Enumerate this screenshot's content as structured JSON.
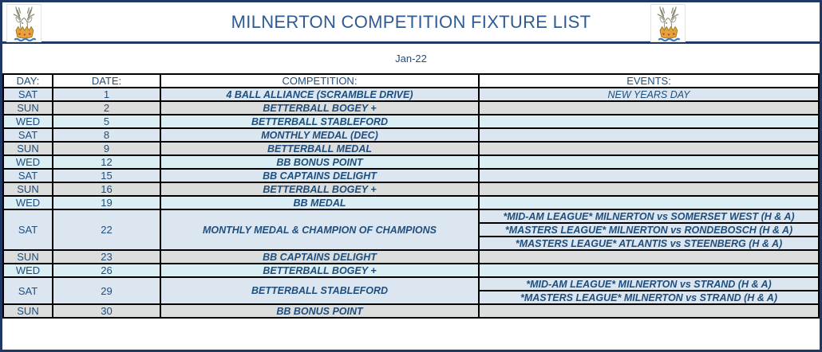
{
  "header": {
    "title": "MILNERTON COMPETITION FIXTURE LIST",
    "month": "Jan-22",
    "logo": "milnerton-golf-club-deer-crest"
  },
  "colors": {
    "frame_navy": "#1F3864",
    "title_blue": "#2E5B93",
    "cell_text_blue": "#1F4E7C",
    "row_sat_blue": "#DCE6F1",
    "row_sun_gray": "#DCDEDE",
    "row_wed_cyan": "#DAEEF3",
    "grid_black": "#000000"
  },
  "table": {
    "columns": [
      "DAY:",
      "DATE:",
      "COMPETITION:",
      "EVENTS:"
    ],
    "rows": [
      {
        "day": "SAT",
        "date": "1",
        "competition": "4 BALL ALLIANCE (SCRAMBLE DRIVE)",
        "shade": "sat",
        "events_bold": false,
        "events": [
          "NEW YEARS DAY"
        ]
      },
      {
        "day": "SUN",
        "date": "2",
        "competition": "BETTERBALL BOGEY +",
        "shade": "sun",
        "events_bold": true,
        "events": [
          ""
        ]
      },
      {
        "day": "WED",
        "date": "5",
        "competition": "BETTERBALL STABLEFORD",
        "shade": "wed",
        "events_bold": true,
        "events": [
          ""
        ]
      },
      {
        "day": "SAT",
        "date": "8",
        "competition": "MONTHLY MEDAL (DEC)",
        "shade": "sat",
        "events_bold": true,
        "events": [
          ""
        ]
      },
      {
        "day": "SUN",
        "date": "9",
        "competition": "BETTERBALL MEDAL",
        "shade": "sun",
        "events_bold": true,
        "events": [
          ""
        ]
      },
      {
        "day": "WED",
        "date": "12",
        "competition": "BB BONUS POINT",
        "shade": "wed",
        "events_bold": true,
        "events": [
          ""
        ]
      },
      {
        "day": "SAT",
        "date": "15",
        "competition": "BB CAPTAINS DELIGHT",
        "shade": "sat",
        "events_bold": true,
        "events": [
          ""
        ]
      },
      {
        "day": "SUN",
        "date": "16",
        "competition": "BETTERBALL BOGEY +",
        "shade": "sun",
        "events_bold": true,
        "events": [
          ""
        ]
      },
      {
        "day": "WED",
        "date": "19",
        "competition": "BB MEDAL",
        "shade": "wed",
        "events_bold": true,
        "events": [
          ""
        ]
      },
      {
        "day": "SAT",
        "date": "22",
        "competition": "MONTHLY MEDAL & CHAMPION OF CHAMPIONS",
        "shade": "sat",
        "events_bold": true,
        "events": [
          "*MID-AM LEAGUE* MILNERTON vs SOMERSET WEST (H & A)",
          "*MASTERS LEAGUE* MILNERTON vs RONDEBOSCH (H & A)",
          "*MASTERS LEAGUE* ATLANTIS vs STEENBERG (H & A)"
        ]
      },
      {
        "day": "SUN",
        "date": "23",
        "competition": "BB CAPTAINS DELIGHT",
        "shade": "sun",
        "events_bold": true,
        "events": [
          ""
        ]
      },
      {
        "day": "WED",
        "date": "26",
        "competition": "BETTERBALL BOGEY +",
        "shade": "wed",
        "events_bold": true,
        "events": [
          ""
        ]
      },
      {
        "day": "SAT",
        "date": "29",
        "competition": "BETTERBALL STABLEFORD",
        "shade": "sat",
        "events_bold": true,
        "events": [
          "*MID-AM LEAGUE* MILNERTON vs STRAND (H & A)",
          "*MASTERS LEAGUE* MILNERTON vs STRAND (H & A)"
        ]
      },
      {
        "day": "SUN",
        "date": "30",
        "competition": "BB BONUS POINT",
        "shade": "sun",
        "events_bold": true,
        "events": [
          ""
        ]
      }
    ]
  }
}
